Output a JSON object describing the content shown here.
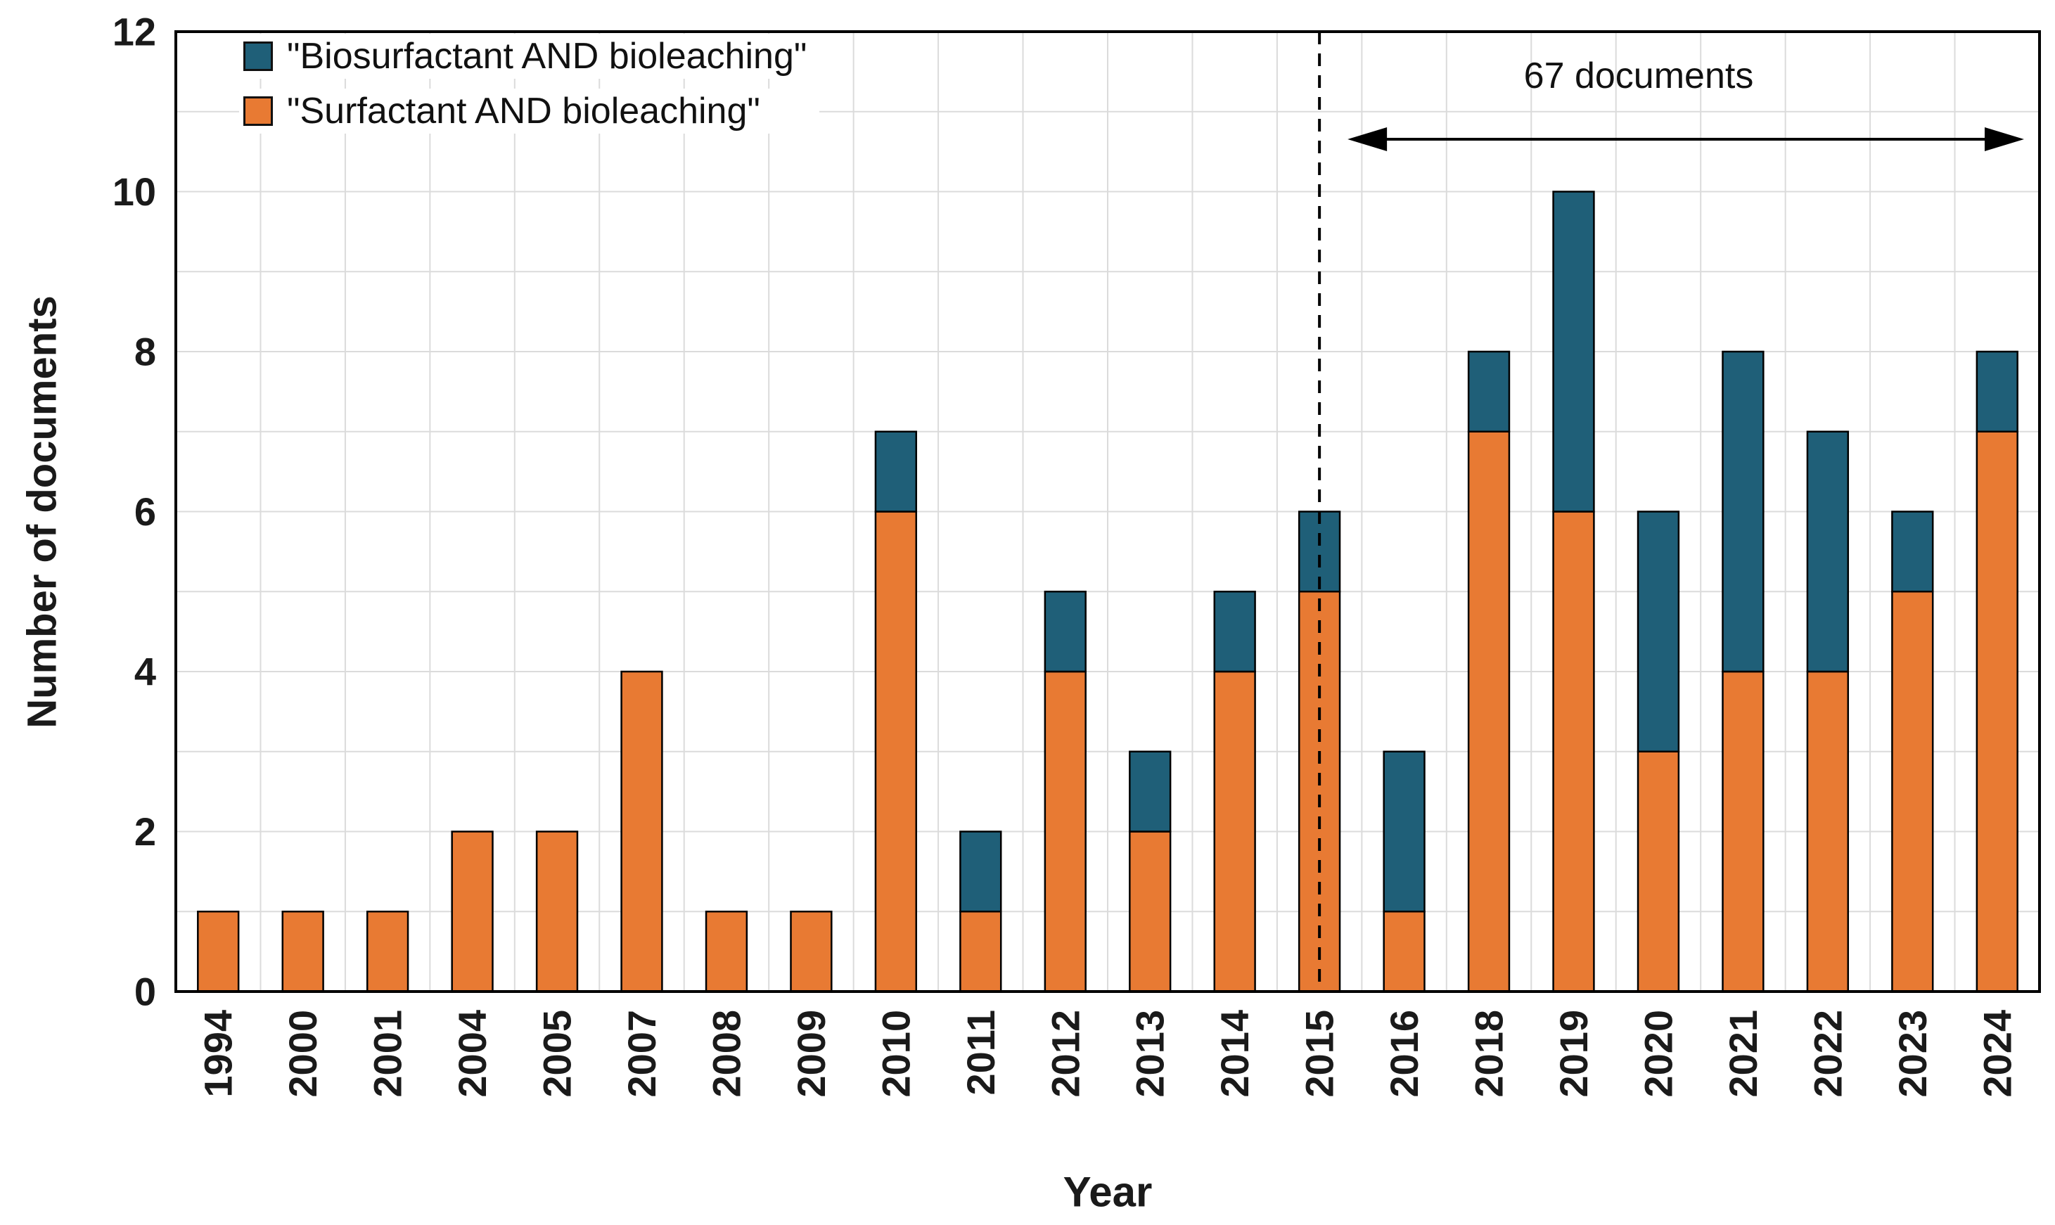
{
  "chart_data": {
    "type": "bar",
    "stacked": true,
    "title": "",
    "xlabel": "Year",
    "ylabel": "Number of documents",
    "ylim": [
      0,
      12
    ],
    "y_ticks": [
      0,
      2,
      4,
      6,
      8,
      10,
      12
    ],
    "y_grid_step": 1,
    "grid": true,
    "categories": [
      "1994",
      "2000",
      "2001",
      "2004",
      "2005",
      "2007",
      "2008",
      "2009",
      "2010",
      "2011",
      "2012",
      "2013",
      "2014",
      "2015",
      "2016",
      "2018",
      "2019",
      "2020",
      "2021",
      "2022",
      "2023",
      "2024"
    ],
    "series": [
      {
        "name": "\"Surfactant AND bioleaching\"",
        "color": "#E87A33",
        "values": [
          1,
          1,
          1,
          2,
          2,
          4,
          1,
          1,
          6,
          1,
          4,
          2,
          4,
          5,
          1,
          7,
          6,
          3,
          4,
          4,
          5,
          7
        ]
      },
      {
        "name": "\"Biosurfactant AND bioleaching\"",
        "color": "#1F5F78",
        "values": [
          0,
          0,
          0,
          0,
          0,
          0,
          0,
          0,
          1,
          1,
          1,
          1,
          1,
          1,
          2,
          1,
          4,
          3,
          4,
          3,
          1,
          1
        ]
      }
    ],
    "legend": {
      "position": "top-left",
      "entries": [
        {
          "label": "\"Biosurfactant AND bioleaching\"",
          "color": "#1F5F78"
        },
        {
          "label": "\"Surfactant AND bioleaching\"",
          "color": "#E87A33"
        }
      ]
    },
    "annotation": {
      "text": "67 documents",
      "arrow_from_category": "2015",
      "arrow_to": "right-edge"
    },
    "reference_line": {
      "type": "dashed-vertical",
      "at_category": "2015"
    },
    "colors": {
      "grid": "#DBDBDB",
      "frame": "#000000",
      "bar_outline": "#000000",
      "text": "#1A1A1A"
    }
  }
}
